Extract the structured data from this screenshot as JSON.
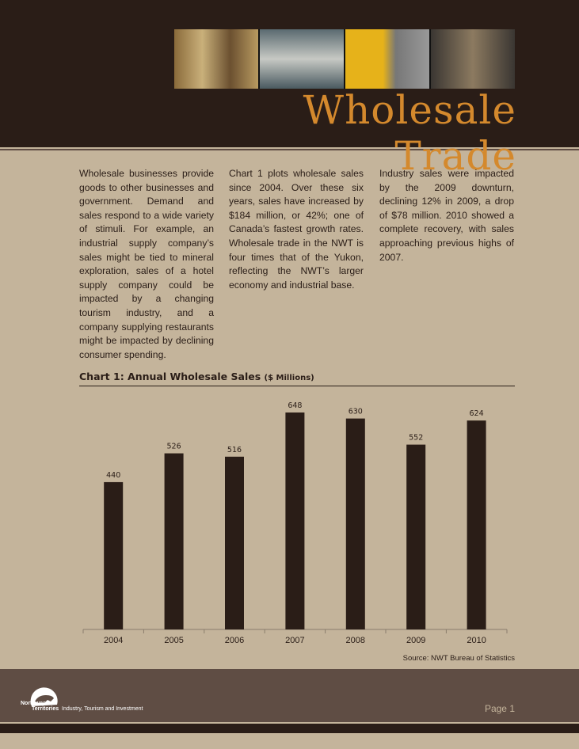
{
  "header": {
    "title": "Wholesale Trade"
  },
  "columns": [
    "Wholesale businesses provide goods to other businesses and government.  Demand and sales respond to a wide variety of stimuli.  For example, an industrial supply company’s sales might be tied to mineral exploration, sales of a hotel supply company could be impacted by a changing tourism industry, and  a company supplying restaurants might be impacted by declining consumer spending.",
    "Chart 1 plots wholesale sales since 2004. Over these six years, sales have increased by $184 million, or 42%; one of Canada’s fastest growth rates. Wholesale trade in the NWT is four times that of the Yukon, reflecting the NWT’s larger economy and industrial base.",
    "Industry sales were impacted by the 2009 downturn, declining 12% in 2009, a drop of $78 million.  2010 showed a complete recovery, with sales approaching previous highs of 2007."
  ],
  "chart_data": {
    "type": "bar",
    "title": "Chart 1: Annual Wholesale Sales",
    "title_unit": "($ Millions)",
    "categories": [
      "2004",
      "2005",
      "2006",
      "2007",
      "2008",
      "2009",
      "2010"
    ],
    "values": [
      440,
      526,
      516,
      648,
      630,
      552,
      624
    ],
    "ylim": [
      0,
      700
    ],
    "bar_color": "#2a1d17",
    "source": "Source: NWT Bureau of Statistics"
  },
  "footer": {
    "logo_text": "Northwest Territories",
    "department": "Industry, Tourism and Investment",
    "page": "Page 1"
  }
}
